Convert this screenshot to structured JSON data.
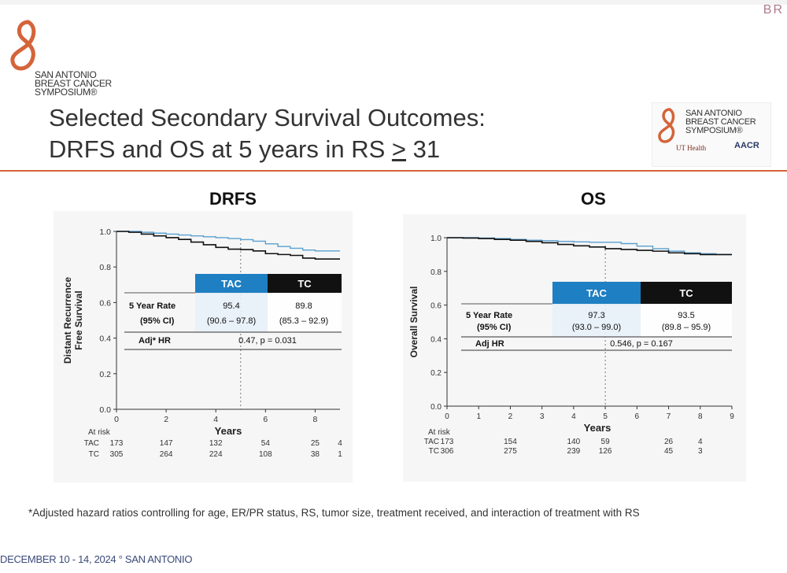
{
  "corner_text": "BR",
  "logo": {
    "line1": "SAN ANTONIO",
    "line2": "BREAST CANCER",
    "line3": "SYMPOSIUM®"
  },
  "title": {
    "line1": "Selected Secondary Survival Outcomes:",
    "line2_prefix": "DRFS and OS at 5 years in RS ",
    "line2_ge": ">",
    "line2_suffix": " 31"
  },
  "logo2": {
    "line1": "SAN ANTONIO",
    "line2": "BREAST CANCER",
    "line3": "SYMPOSIUM®",
    "ut": "UT Health",
    "aacr": "AACR"
  },
  "colors": {
    "tac": "#5aa0d0",
    "tc": "#111111",
    "tac_header": "#1e7fc2",
    "accent": "#d4643a"
  },
  "chart_data": [
    {
      "type": "line",
      "title": "DRFS",
      "xlabel": "Years",
      "ylabel": "Distant Recurrence Free Survival",
      "xlim": [
        0,
        9
      ],
      "ylim": [
        0,
        1
      ],
      "xticks": [
        "0",
        "2",
        "4",
        "6",
        "8"
      ],
      "yticks": [
        "0.0",
        "0.2",
        "0.4",
        "0.6",
        "0.8",
        "1.0"
      ],
      "series": [
        {
          "name": "TAC",
          "x": [
            0,
            0.5,
            1,
            1.5,
            2,
            2.5,
            3,
            3.5,
            4,
            4.5,
            5,
            5.5,
            6,
            6.5,
            7,
            7.5,
            8,
            8.5,
            9
          ],
          "y": [
            1.0,
            1.0,
            0.995,
            0.99,
            0.985,
            0.98,
            0.975,
            0.97,
            0.965,
            0.96,
            0.954,
            0.945,
            0.93,
            0.915,
            0.905,
            0.895,
            0.89,
            0.89,
            0.89
          ]
        },
        {
          "name": "TC",
          "x": [
            0,
            0.5,
            1,
            1.5,
            2,
            2.5,
            3,
            3.5,
            4,
            4.5,
            5,
            5.5,
            6,
            6.5,
            7,
            7.5,
            8,
            8.5,
            9
          ],
          "y": [
            1.0,
            0.995,
            0.985,
            0.975,
            0.965,
            0.955,
            0.94,
            0.925,
            0.91,
            0.9,
            0.898,
            0.89,
            0.875,
            0.87,
            0.865,
            0.85,
            0.845,
            0.845,
            0.845
          ]
        }
      ],
      "table": {
        "header": [
          "TAC",
          "TC"
        ],
        "rows": [
          {
            "label": "5 Year Rate",
            "values": [
              "95.4",
              "89.8"
            ]
          },
          {
            "label": "(95% CI)",
            "values": [
              "(90.6 – 97.8)",
              "(85.3 – 92.9)"
            ]
          }
        ],
        "hr_label": "Adj* HR",
        "hr_value": "0.47, p = 0.031"
      },
      "at_risk": {
        "label": "At risk",
        "ticks": [
          "0",
          "2",
          "4",
          "6",
          "8",
          "9"
        ],
        "rows": [
          {
            "name": "TAC",
            "values": [
              "173",
              "147",
              "132",
              "54",
              "25",
              "4"
            ]
          },
          {
            "name": "TC",
            "values": [
              "305",
              "264",
              "224",
              "108",
              "38",
              "1"
            ]
          }
        ]
      }
    },
    {
      "type": "line",
      "title": "OS",
      "xlabel": "Years",
      "ylabel": "Overall Survival",
      "xlim": [
        0,
        9
      ],
      "ylim": [
        0,
        1
      ],
      "xticks": [
        "0",
        "1",
        "2",
        "3",
        "4",
        "5",
        "6",
        "7",
        "8",
        "9"
      ],
      "yticks": [
        "0.0",
        "0.2",
        "0.4",
        "0.6",
        "0.8",
        "1.0"
      ],
      "series": [
        {
          "name": "TAC",
          "x": [
            0,
            0.5,
            1,
            1.5,
            2,
            2.5,
            3,
            3.5,
            4,
            4.5,
            5,
            5.5,
            6,
            6.5,
            7,
            7.5,
            8,
            8.5,
            9
          ],
          "y": [
            1.0,
            1.0,
            0.998,
            0.995,
            0.99,
            0.985,
            0.982,
            0.978,
            0.975,
            0.973,
            0.973,
            0.965,
            0.95,
            0.935,
            0.92,
            0.91,
            0.905,
            0.9,
            0.9
          ]
        },
        {
          "name": "TC",
          "x": [
            0,
            0.5,
            1,
            1.5,
            2,
            2.5,
            3,
            3.5,
            4,
            4.5,
            5,
            5.5,
            6,
            6.5,
            7,
            7.5,
            8,
            8.5,
            9
          ],
          "y": [
            1.0,
            0.998,
            0.995,
            0.99,
            0.985,
            0.978,
            0.97,
            0.96,
            0.952,
            0.945,
            0.935,
            0.93,
            0.925,
            0.92,
            0.91,
            0.905,
            0.9,
            0.9,
            0.9
          ]
        }
      ],
      "table": {
        "header": [
          "TAC",
          "TC"
        ],
        "rows": [
          {
            "label": "5 Year Rate",
            "values": [
              "97.3",
              "93.5"
            ]
          },
          {
            "label": "(95% CI)",
            "values": [
              "(93.0 – 99.0)",
              "(89.8 – 95.9)"
            ]
          }
        ],
        "hr_label": "Adj HR",
        "hr_value": "0.546, p = 0.167"
      },
      "at_risk": {
        "label": "At risk",
        "ticks": [
          "0",
          "2",
          "4",
          "5",
          "7",
          "8"
        ],
        "rows": [
          {
            "name": "TAC",
            "values": [
              "173",
              "154",
              "140",
              "59",
              "26",
              "4"
            ]
          },
          {
            "name": "TC",
            "values": [
              "306",
              "275",
              "239",
              "126",
              "45",
              "3"
            ]
          }
        ]
      }
    }
  ],
  "footnote": "*Adjusted hazard ratios controlling for age, ER/PR status, RS, tumor size, treatment received, and interaction of treatment with RS",
  "footer": "DECEMBER 10 - 14, 2024 ° SAN ANTONIO"
}
